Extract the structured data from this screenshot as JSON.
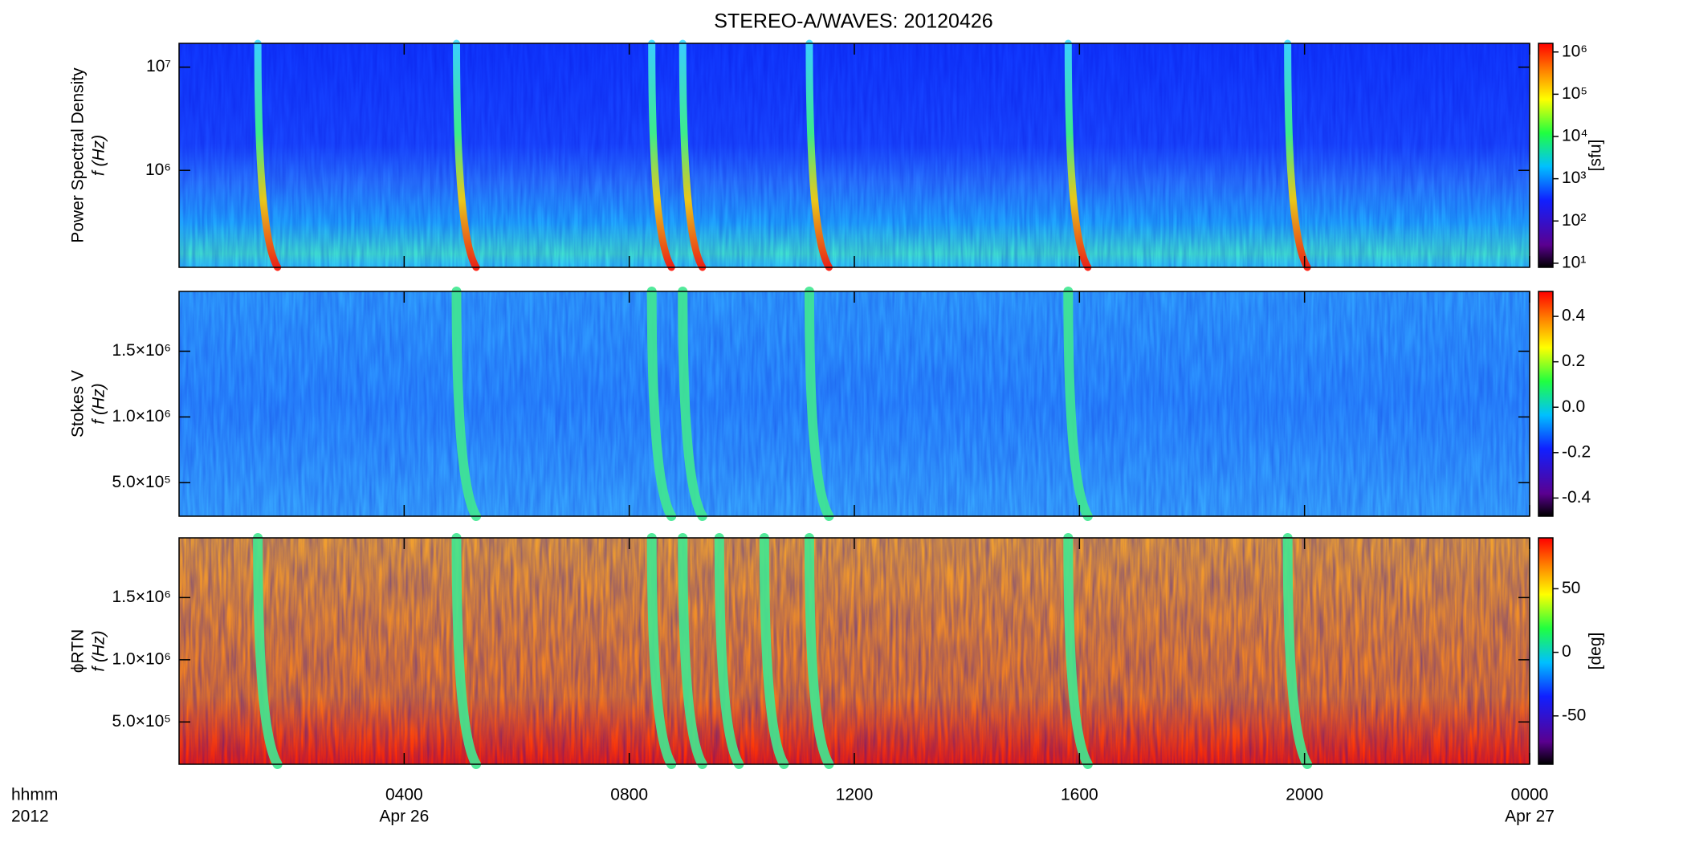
{
  "chart_data": [
    {
      "type": "spectrogram",
      "title": "STEREO-A/WAVES: 20120426",
      "ylabel": [
        "Power Spectral Density",
        "f (Hz)"
      ],
      "yscale": "log",
      "xlim": [
        0,
        24
      ],
      "ylim": [
        115000,
        17000000
      ],
      "yticks": [
        {
          "value": 1000000,
          "label": "10⁶"
        },
        {
          "value": 10000000,
          "label": "10⁷"
        }
      ],
      "colorbar": {
        "scale": "log",
        "clim": [
          8,
          1600000
        ],
        "label": "[sfu]",
        "ticks": [
          {
            "value": 10,
            "label": "10¹"
          },
          {
            "value": 100,
            "label": "10²"
          },
          {
            "value": 1000,
            "label": "10³"
          },
          {
            "value": 10000,
            "label": "10⁴"
          },
          {
            "value": 100000,
            "label": "10⁵"
          },
          {
            "value": 1000000,
            "label": "10⁶"
          }
        ]
      },
      "bursts": [
        1.4,
        4.93,
        8.4,
        8.95,
        11.2,
        15.8,
        19.7
      ]
    },
    {
      "type": "spectrogram",
      "ylabel": [
        "Stokes V",
        "f (Hz)"
      ],
      "yscale": "linear",
      "xlim": [
        0,
        24
      ],
      "ylim": [
        245000,
        1955000
      ],
      "yticks": [
        {
          "value": 500000,
          "label": "5.0×10⁵"
        },
        {
          "value": 1000000,
          "label": "1.0×10⁶"
        },
        {
          "value": 1500000,
          "label": "1.5×10⁶"
        }
      ],
      "colorbar": {
        "scale": "linear",
        "clim": [
          -0.48,
          0.51
        ],
        "ticks": [
          -0.4,
          -0.2,
          {
            "value": 0,
            "label": "0.0"
          },
          0.2,
          0.4
        ]
      },
      "bursts": [
        4.93,
        8.4,
        8.95,
        11.2,
        15.8
      ]
    },
    {
      "type": "spectrogram",
      "ylabel": [
        "ϕRTN",
        "f (Hz)"
      ],
      "yscale": "linear",
      "xlim": [
        0,
        24
      ],
      "ylim": [
        160000,
        1980000
      ],
      "yticks": [
        {
          "value": 500000,
          "label": "5.0×10⁵"
        },
        {
          "value": 1000000,
          "label": "1.0×10⁶"
        },
        {
          "value": 1500000,
          "label": "1.5×10⁶"
        }
      ],
      "colorbar": {
        "scale": "linear",
        "clim": [
          -88,
          90
        ],
        "label": "[deg]",
        "ticks": [
          -50,
          0,
          50
        ]
      },
      "bursts": [
        1.4,
        4.93,
        8.4,
        8.95,
        9.6,
        10.4,
        11.2,
        15.8,
        19.7
      ],
      "xlabel": "hhmm",
      "year_label": "2012",
      "xticks": [
        {
          "value": 4,
          "label": "0400"
        },
        {
          "value": 8,
          "label": "0800"
        },
        {
          "value": 12,
          "label": "1200"
        },
        {
          "value": 16,
          "label": "1600"
        },
        {
          "value": 20,
          "label": "2000"
        },
        {
          "value": 24,
          "label": "0000"
        }
      ],
      "date_labels": [
        {
          "value": 4,
          "label": "Apr 26"
        },
        {
          "value": 24,
          "label": "Apr 27"
        }
      ]
    }
  ]
}
